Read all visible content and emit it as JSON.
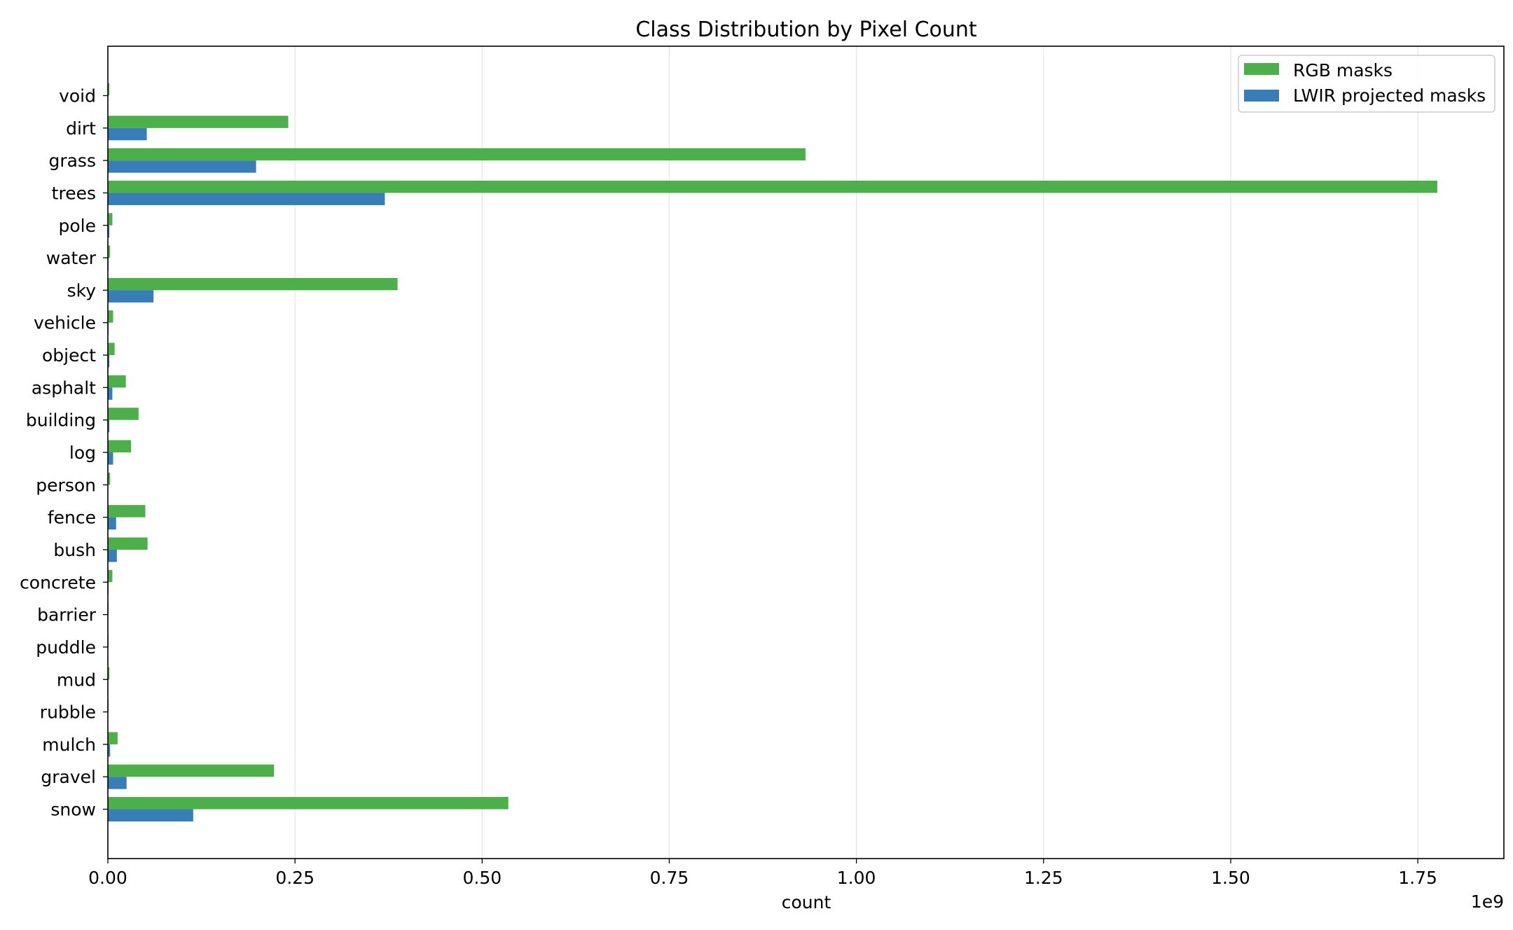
{
  "chart_data": {
    "type": "bar",
    "orientation": "horizontal",
    "title": "Class Distribution by Pixel Count",
    "xlabel": "count",
    "ylabel": "",
    "x_offset_label": "1e9",
    "xlim": [
      0,
      1.865
    ],
    "x_ticks": [
      0,
      0.25,
      0.5,
      0.75,
      1.0,
      1.25,
      1.5,
      1.75
    ],
    "x_tick_labels": [
      "0.00",
      "0.25",
      "0.50",
      "0.75",
      "1.00",
      "1.25",
      "1.50",
      "1.75"
    ],
    "grid": "vertical",
    "legend_position": "top-right",
    "categories": [
      "void",
      "dirt",
      "grass",
      "trees",
      "pole",
      "water",
      "sky",
      "vehicle",
      "object",
      "asphalt",
      "building",
      "log",
      "person",
      "fence",
      "bush",
      "concrete",
      "barrier",
      "puddle",
      "mud",
      "rubble",
      "mulch",
      "gravel",
      "snow"
    ],
    "series": [
      {
        "name": "RGB masks",
        "color": "#4daf4a",
        "values": [
          0.002,
          0.241,
          0.932,
          1.776,
          0.006,
          0.003,
          0.387,
          0.007,
          0.009,
          0.024,
          0.041,
          0.031,
          0.003,
          0.05,
          0.053,
          0.006,
          0.001,
          0.001,
          0.002,
          0.001,
          0.013,
          0.222,
          0.535
        ]
      },
      {
        "name": "LWIR projected masks",
        "color": "#377eb8",
        "values": [
          0.0005,
          0.052,
          0.198,
          0.37,
          0.002,
          0.001,
          0.061,
          0.001,
          0.002,
          0.006,
          0.002,
          0.007,
          0.0005,
          0.011,
          0.012,
          0.001,
          0.0002,
          0.0002,
          0.0005,
          0.0002,
          0.003,
          0.025,
          0.114
        ]
      }
    ]
  }
}
